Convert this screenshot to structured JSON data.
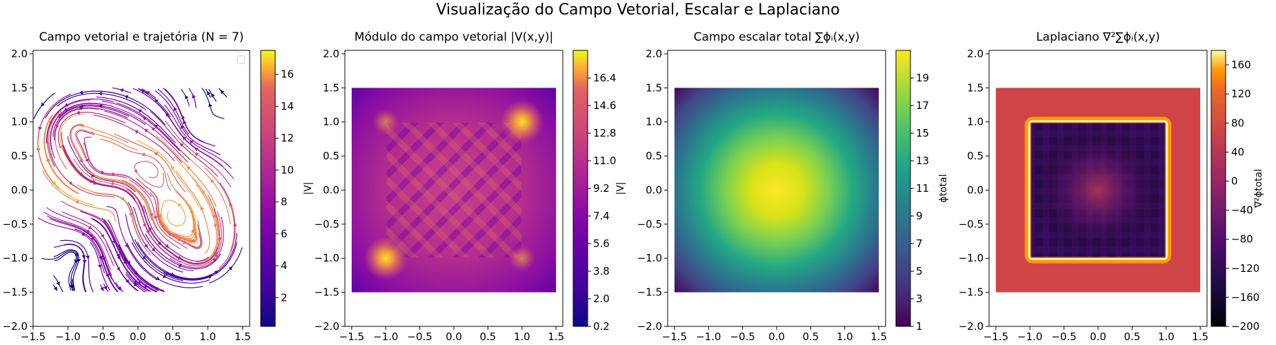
{
  "figure": {
    "suptitle": "Visualização do Campo Vetorial, Escalar e Laplaciano"
  },
  "chart_data": [
    {
      "type": "streamplot",
      "title": "Campo vetorial e trajetória (N = 7)",
      "xlabel": "",
      "ylabel": "",
      "xlim": [
        -1.5,
        1.6
      ],
      "ylim": [
        -2.0,
        2.05
      ],
      "xticks": [
        -1.5,
        -1.0,
        -0.5,
        0.0,
        0.5,
        1.0,
        1.5
      ],
      "yticks": [
        -2.0,
        -1.5,
        -1.0,
        -0.5,
        0.0,
        0.5,
        1.0,
        1.5,
        2.0
      ],
      "xtick_labels": [
        "−1.5",
        "−1.0",
        "−0.5",
        "0.0",
        "0.5",
        "1.0",
        "1.5"
      ],
      "ytick_labels": [
        "−2.0",
        "−1.5",
        "−1.0",
        "−0.5",
        "0.0",
        "0.5",
        "1.0",
        "1.5",
        "2.0"
      ],
      "domain": [
        -1.5,
        1.5
      ],
      "colormap": "plasma",
      "legend": "top-right (empty)",
      "colorbar": {
        "label": "|V|",
        "range": [
          0.2,
          17.5
        ],
        "ticks": [
          2,
          4,
          6,
          8,
          10,
          12,
          14,
          16
        ],
        "tick_labels": [
          "2",
          "4",
          "6",
          "8",
          "10",
          "12",
          "14",
          "16"
        ]
      }
    },
    {
      "type": "heatmap",
      "title": "Módulo do campo vetorial |V(x,y)|",
      "xlim": [
        -1.6,
        1.6
      ],
      "ylim": [
        -2.0,
        2.05
      ],
      "xticks": [
        -1.5,
        -1.0,
        -0.5,
        0.0,
        0.5,
        1.0,
        1.5
      ],
      "yticks": [
        -2.0,
        -1.5,
        -1.0,
        -0.5,
        0.0,
        0.5,
        1.0,
        1.5,
        2.0
      ],
      "xtick_labels": [
        "−1.5",
        "−1.0",
        "−0.5",
        "0.0",
        "0.5",
        "1.0",
        "1.5"
      ],
      "ytick_labels": [
        "−2.0",
        "−1.5",
        "−1.0",
        "−0.5",
        "0.0",
        "0.5",
        "1.0",
        "1.5",
        "2.0"
      ],
      "domain": [
        -1.5,
        1.5
      ],
      "colormap": "plasma",
      "colorbar": {
        "label": "|V|",
        "range": [
          0.2,
          18.2
        ],
        "ticks": [
          0.2,
          2.0,
          3.8,
          5.6,
          7.4,
          9.2,
          11.0,
          12.8,
          14.6,
          16.4
        ],
        "tick_labels": [
          "0.2",
          "2.0",
          "3.8",
          "5.6",
          "7.4",
          "9.2",
          "11.0",
          "12.8",
          "14.6",
          "16.4"
        ]
      }
    },
    {
      "type": "heatmap",
      "title": "Campo escalar total ∑ϕᵢ(x,y)",
      "xlim": [
        -1.6,
        1.6
      ],
      "ylim": [
        -2.0,
        2.05
      ],
      "xticks": [
        -1.5,
        -1.0,
        -0.5,
        0.0,
        0.5,
        1.0,
        1.5
      ],
      "yticks": [
        -2.0,
        -1.5,
        -1.0,
        -0.5,
        0.0,
        0.5,
        1.0,
        1.5,
        2.0
      ],
      "xtick_labels": [
        "−1.5",
        "−1.0",
        "−0.5",
        "0.0",
        "0.5",
        "1.0",
        "1.5"
      ],
      "ytick_labels": [
        "−2.0",
        "−1.5",
        "−1.0",
        "−0.5",
        "0.0",
        "0.5",
        "1.0",
        "1.5",
        "2.0"
      ],
      "domain": [
        -1.5,
        1.5
      ],
      "colormap": "viridis",
      "colorbar": {
        "label": "ϕtotal",
        "range": [
          1,
          21
        ],
        "ticks": [
          1,
          3,
          5,
          7,
          9,
          11,
          13,
          15,
          17,
          19
        ],
        "tick_labels": [
          "1",
          "3",
          "5",
          "7",
          "9",
          "11",
          "13",
          "15",
          "17",
          "19"
        ]
      }
    },
    {
      "type": "heatmap",
      "title": "Laplaciano ∇²∑ϕᵢ(x,y)",
      "xlim": [
        -1.6,
        1.6
      ],
      "ylim": [
        -2.0,
        2.05
      ],
      "xticks": [
        -1.5,
        -1.0,
        -0.5,
        0.0,
        0.5,
        1.0,
        1.5
      ],
      "yticks": [
        -2.0,
        -1.5,
        -1.0,
        -0.5,
        0.0,
        0.5,
        1.0,
        1.5,
        2.0
      ],
      "xtick_labels": [
        "−1.5",
        "−1.0",
        "−0.5",
        "0.0",
        "0.5",
        "1.0",
        "1.5"
      ],
      "ytick_labels": [
        "−2.0",
        "−1.5",
        "−1.0",
        "−0.5",
        "0.0",
        "0.5",
        "1.0",
        "1.5",
        "2.0"
      ],
      "domain": [
        -1.5,
        1.5
      ],
      "inner_square": [
        -1.0,
        1.0
      ],
      "colormap": "inferno",
      "colorbar": {
        "label": "∇²ϕtotal",
        "range": [
          -200,
          180
        ],
        "ticks": [
          -200,
          -160,
          -120,
          -80,
          -40,
          0,
          40,
          80,
          120,
          160
        ],
        "tick_labels": [
          "−200",
          "−160",
          "−120",
          "−80",
          "−40",
          "0",
          "40",
          "80",
          "120",
          "160"
        ]
      }
    }
  ]
}
